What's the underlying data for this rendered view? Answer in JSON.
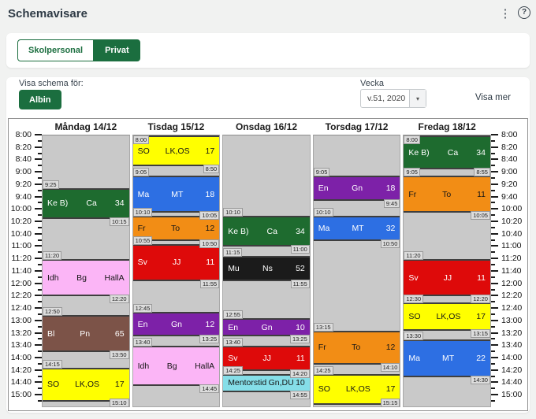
{
  "header": {
    "title": "Schemavisare"
  },
  "tabs": {
    "items": [
      {
        "label": "Skolpersonal",
        "active": false
      },
      {
        "label": "Privat",
        "active": true
      }
    ]
  },
  "filters": {
    "show_for_label": "Visa schema för:",
    "person": "Albin",
    "week_label": "Vecka",
    "week_value": "v.51, 2020",
    "show_more": "Visa mer"
  },
  "schedule": {
    "axis": {
      "labels": [
        "8:00",
        "8:20",
        "8:40",
        "9:00",
        "9:20",
        "9:40",
        "10:00",
        "10:20",
        "10:40",
        "11:00",
        "11:20",
        "11:40",
        "12:00",
        "12:20",
        "12:40",
        "13:00",
        "13:20",
        "13:40",
        "14:00",
        "14:20",
        "14:40",
        "15:00"
      ]
    },
    "palette": {
      "green": "#1E6B2F",
      "yellow": "#FFFF00",
      "blue": "#2D6FE3",
      "orange": "#F28D15",
      "red": "#DE0A0A",
      "purple": "#7D21A8",
      "pink": "#FBB5F6",
      "brown": "#7C5348",
      "black": "#1B1B1B",
      "cyan": "#85DEE8"
    },
    "dark_text_colors": [
      "yellow",
      "pink",
      "cyan",
      "orange"
    ],
    "column_bg": "#C9C9C9",
    "days": [
      {
        "name": "Måndag 14/12",
        "lessons": [
          {
            "subject": "Ke B)",
            "teacher": "Ca",
            "room": "34",
            "start": "9:25",
            "end": "10:15",
            "color": "green"
          },
          {
            "subject": "Idh",
            "teacher": "Bg",
            "room": "HallA",
            "start": "11:20",
            "end": "12:20",
            "color": "pink"
          },
          {
            "subject": "Bl",
            "teacher": "Pn",
            "room": "65",
            "start": "12:50",
            "end": "13:50",
            "color": "brown"
          },
          {
            "subject": "SO",
            "teacher": "LK,OS",
            "room": "17",
            "start": "14:15",
            "end": "15:10",
            "color": "yellow"
          }
        ]
      },
      {
        "name": "Tisdag 15/12",
        "lessons": [
          {
            "subject": "SO",
            "teacher": "LK,OS",
            "room": "17",
            "start": "8:00",
            "end": "8:50",
            "color": "yellow"
          },
          {
            "subject": "Ma",
            "teacher": "MT",
            "room": "18",
            "start": "9:05",
            "end": "10:05",
            "color": "blue"
          },
          {
            "subject": "Fr",
            "teacher": "To",
            "room": "12",
            "start": "10:10",
            "end": "10:50",
            "color": "orange"
          },
          {
            "subject": "Sv",
            "teacher": "JJ",
            "room": "11",
            "start": "10:55",
            "end": "11:55",
            "color": "red"
          },
          {
            "subject": "En",
            "teacher": "Gn",
            "room": "12",
            "start": "12:45",
            "end": "13:25",
            "color": "purple"
          },
          {
            "subject": "Idh",
            "teacher": "Bg",
            "room": "HallA",
            "start": "13:40",
            "end": "14:45",
            "color": "pink"
          }
        ]
      },
      {
        "name": "Onsdag 16/12",
        "lessons": [
          {
            "subject": "Ke B)",
            "teacher": "Ca",
            "room": "34",
            "start": "10:10",
            "end": "11:00",
            "color": "green"
          },
          {
            "subject": "Mu",
            "teacher": "Ns",
            "room": "52",
            "start": "11:15",
            "end": "11:55",
            "color": "black"
          },
          {
            "subject": "En",
            "teacher": "Gn",
            "room": "10",
            "start": "12:55",
            "end": "13:25",
            "color": "purple"
          },
          {
            "subject": "Sv",
            "teacher": "JJ",
            "room": "11",
            "start": "13:40",
            "end": "14:20",
            "color": "red"
          },
          {
            "subject": "Mentorstid",
            "teacher": "Gn,DU",
            "room": "10",
            "start": "14:25",
            "end": "14:55",
            "color": "cyan"
          }
        ]
      },
      {
        "name": "Torsdag 17/12",
        "lessons": [
          {
            "subject": "En",
            "teacher": "Gn",
            "room": "18",
            "start": "9:05",
            "end": "9:45",
            "color": "purple"
          },
          {
            "subject": "Ma",
            "teacher": "MT",
            "room": "32",
            "start": "10:10",
            "end": "10:50",
            "color": "blue"
          },
          {
            "subject": "Fr",
            "teacher": "To",
            "room": "12",
            "start": "13:15",
            "end": "14:10",
            "color": "orange"
          },
          {
            "subject": "SO",
            "teacher": "LK,OS",
            "room": "17",
            "start": "14:25",
            "end": "15:15",
            "color": "yellow"
          }
        ]
      },
      {
        "name": "Fredag 18/12",
        "lessons": [
          {
            "subject": "Ke B)",
            "teacher": "Ca",
            "room": "34",
            "start": "8:00",
            "end": "8:55",
            "color": "green"
          },
          {
            "subject": "Fr",
            "teacher": "To",
            "room": "11",
            "start": "9:05",
            "end": "10:05",
            "color": "orange"
          },
          {
            "subject": "Sv",
            "teacher": "JJ",
            "room": "11",
            "start": "11:20",
            "end": "12:20",
            "color": "red"
          },
          {
            "subject": "SO",
            "teacher": "LK,OS",
            "room": "17",
            "start": "12:30",
            "end": "13:15",
            "color": "yellow"
          },
          {
            "subject": "Ma",
            "teacher": "MT",
            "room": "22",
            "start": "13:30",
            "end": "14:30",
            "color": "blue"
          }
        ]
      }
    ]
  }
}
